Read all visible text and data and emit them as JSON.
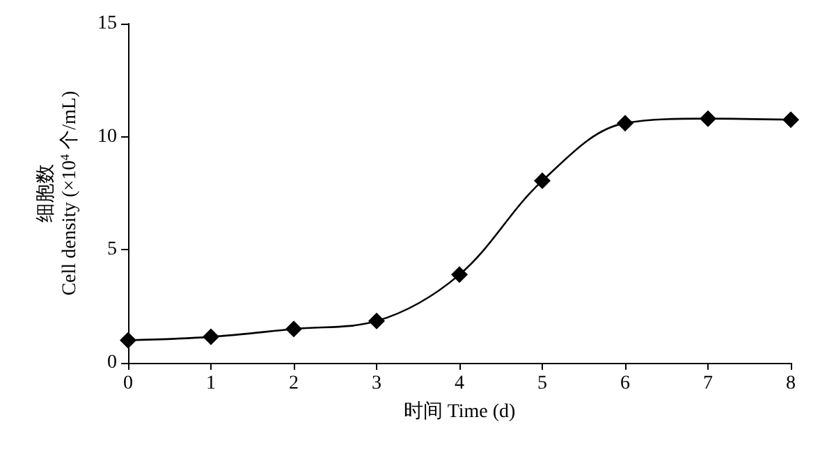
{
  "chart_data": {
    "type": "line",
    "xlabel": "时间 Time (d)",
    "ylabel": "细胞数\nCell density (×10$^{4}$ 个/mL)",
    "x": [
      0,
      1,
      2,
      3,
      4,
      5,
      6,
      7,
      8
    ],
    "series": [
      {
        "color": "#000000",
        "values": [
          1.0,
          1.15,
          1.5,
          1.85,
          3.9,
          8.05,
          10.6,
          10.8,
          10.75
        ]
      }
    ],
    "xlim": [
      0,
      8
    ],
    "xticks": [
      0,
      1,
      2,
      3,
      4,
      5,
      6,
      7,
      8
    ],
    "ylim": [
      0,
      15
    ],
    "yticks": [
      0,
      5,
      10,
      15
    ],
    "grid": false,
    "marker": "diamond",
    "line_style": "solid"
  }
}
